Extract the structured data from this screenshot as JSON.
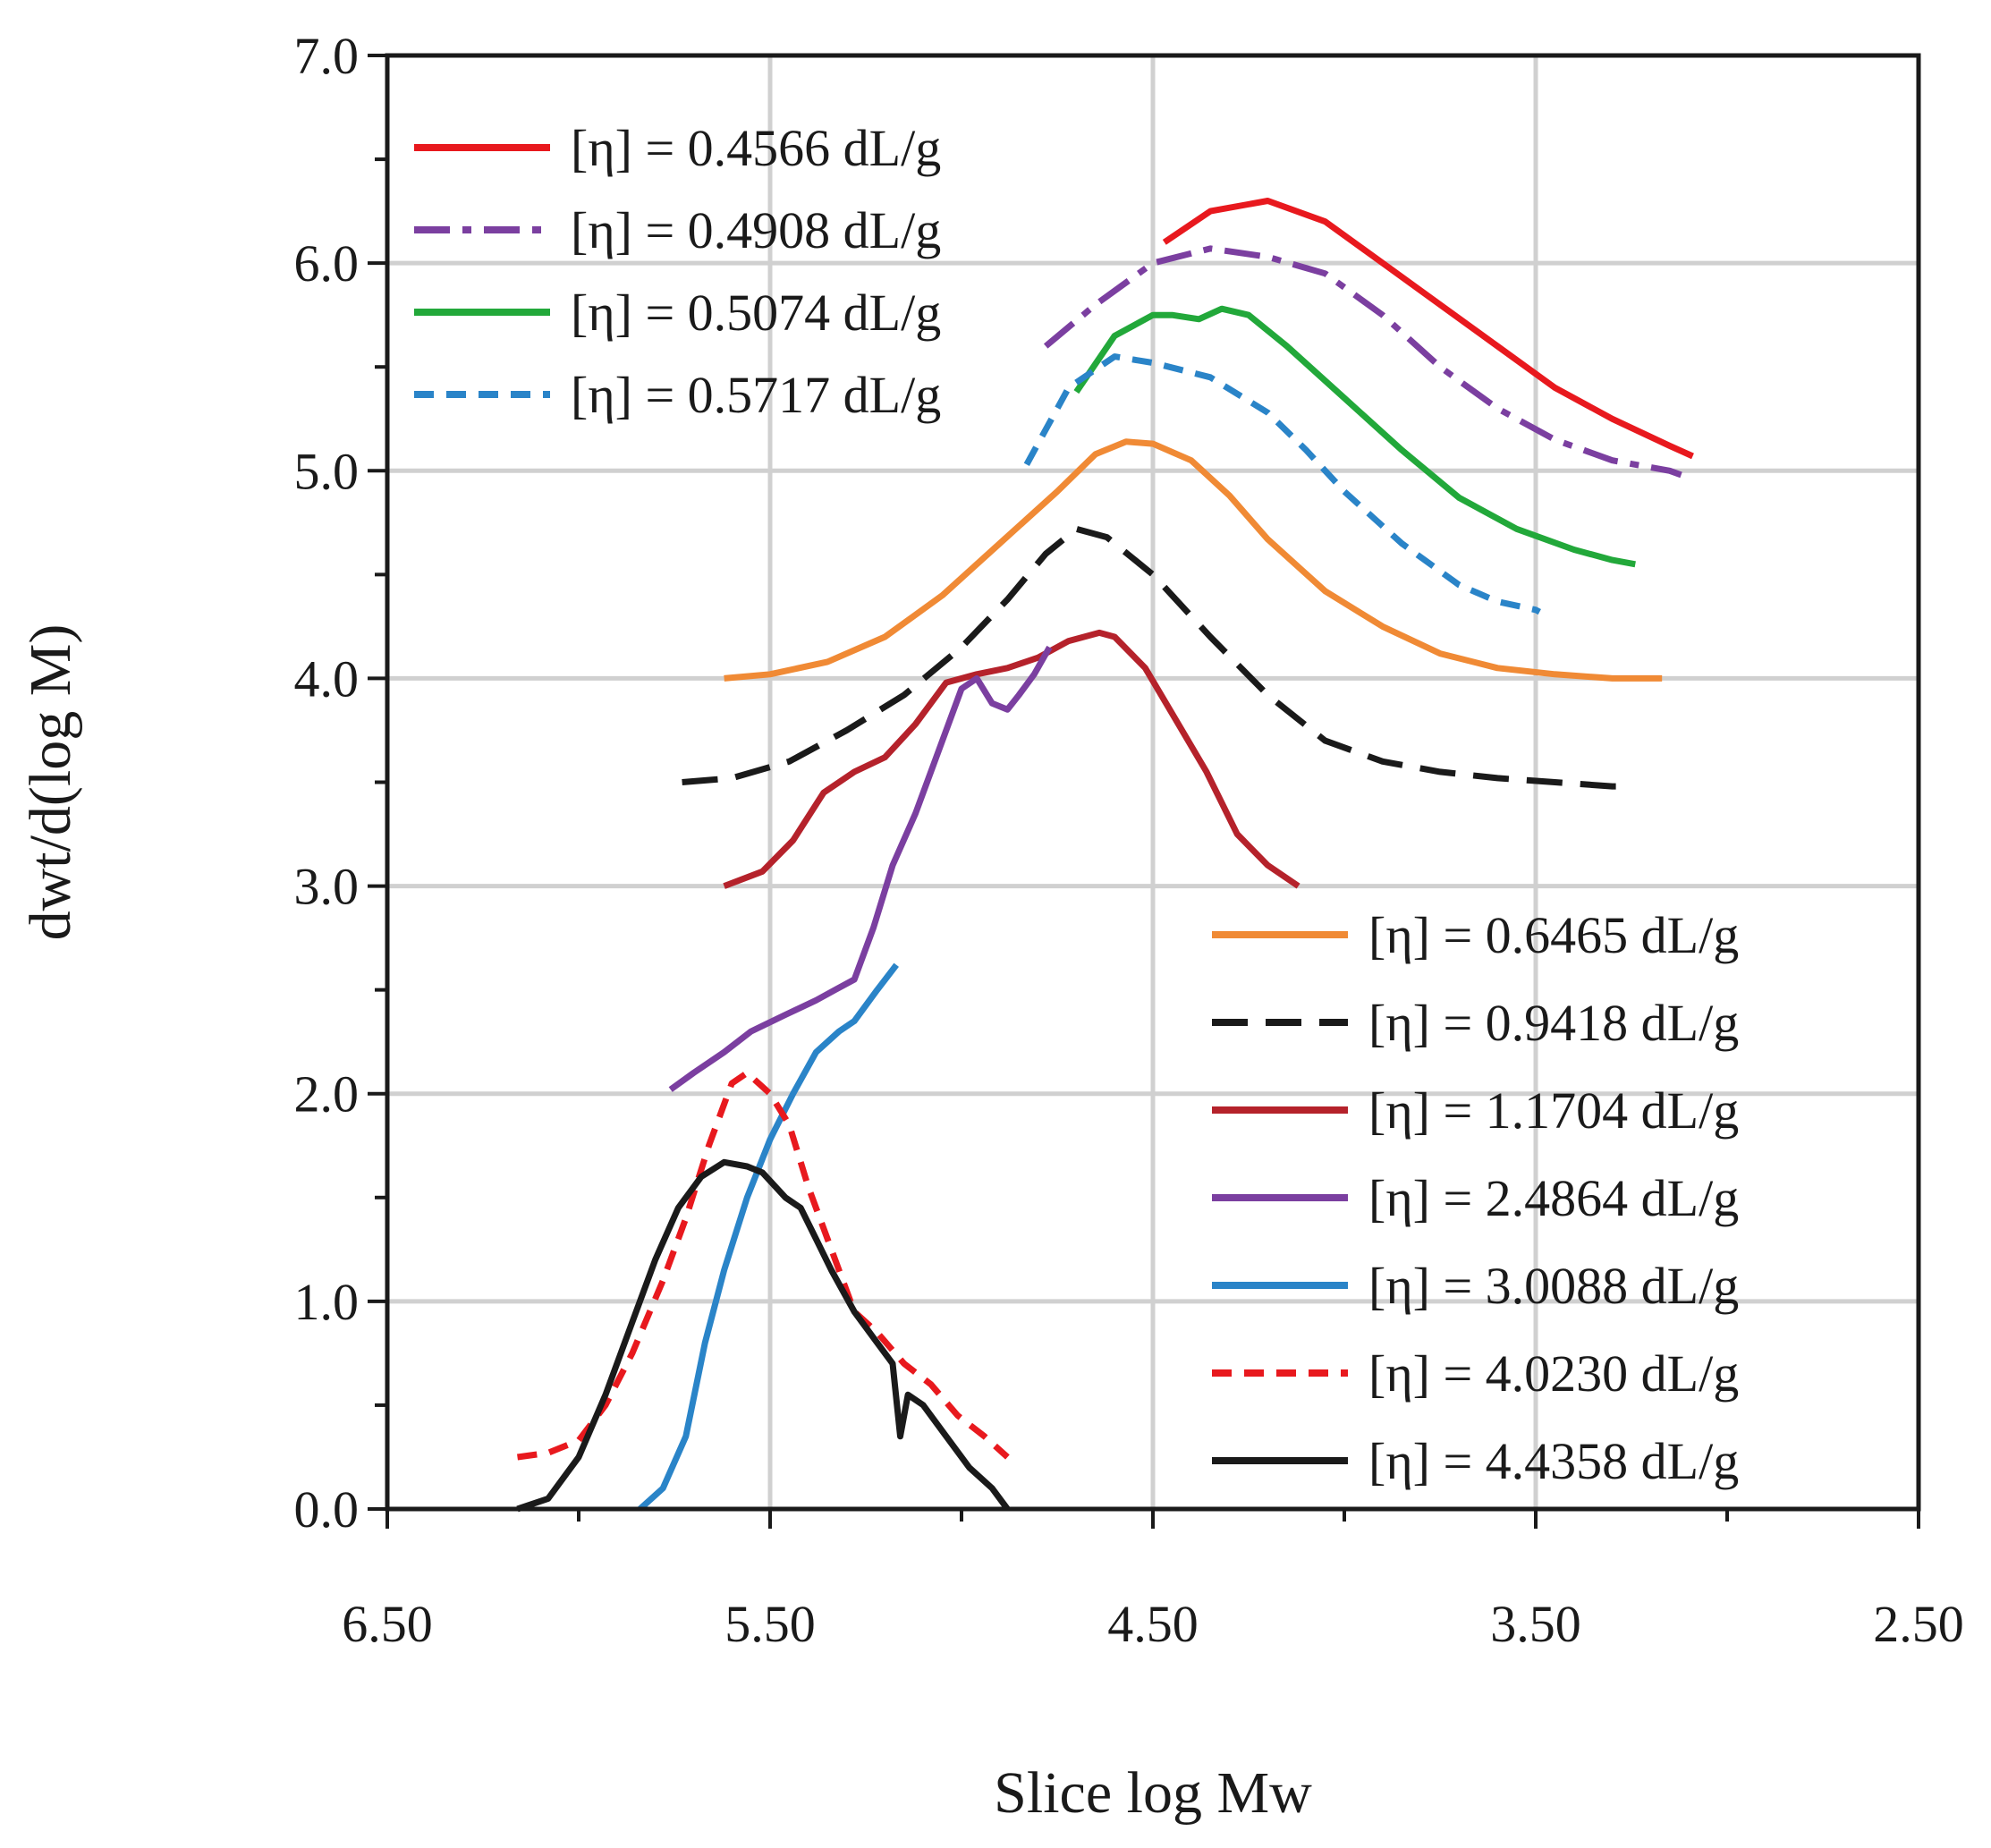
{
  "chart_data": {
    "type": "line",
    "xlabel": "Slice log Mw",
    "ylabel": "dwt/d(log M)",
    "xlim": [
      6.5,
      2.5
    ],
    "ylim": [
      0,
      7
    ],
    "x_reversed": true,
    "grid": true,
    "x_ticks": [
      "6.50",
      "5.50",
      "4.50",
      "3.50",
      "2.50"
    ],
    "y_ticks": [
      "0.0",
      "1.0",
      "2.0",
      "3.0",
      "4.0",
      "5.0",
      "6.0",
      "7.0"
    ],
    "legends": [
      {
        "position": "top-left",
        "series": [
          0,
          1,
          2,
          3
        ]
      },
      {
        "position": "bottom-right",
        "series": [
          4,
          5,
          6,
          7,
          8,
          9,
          10
        ]
      }
    ],
    "series": [
      {
        "name": "[η] = 0.4566 dL/g",
        "color": "#e8191e",
        "style": "solid",
        "x": [
          4.47,
          4.35,
          4.2,
          4.05,
          3.9,
          3.75,
          3.6,
          3.45,
          3.3,
          3.15,
          3.09
        ],
        "y": [
          6.1,
          6.25,
          6.3,
          6.2,
          6.0,
          5.8,
          5.6,
          5.4,
          5.25,
          5.12,
          5.07
        ]
      },
      {
        "name": "[η] = 0.4908 dL/g",
        "color": "#7b3fa0",
        "style": "dashdot",
        "x": [
          4.78,
          4.65,
          4.5,
          4.35,
          4.2,
          4.05,
          3.9,
          3.75,
          3.6,
          3.45,
          3.3,
          3.15,
          3.12
        ],
        "y": [
          5.6,
          5.8,
          6.0,
          6.07,
          6.03,
          5.95,
          5.75,
          5.5,
          5.3,
          5.15,
          5.05,
          5.0,
          4.98
        ]
      },
      {
        "name": "[η] = 0.5074 dL/g",
        "color": "#22a83a",
        "style": "solid",
        "x": [
          4.7,
          4.6,
          4.5,
          4.45,
          4.38,
          4.32,
          4.25,
          4.15,
          4.0,
          3.85,
          3.7,
          3.55,
          3.4,
          3.3,
          3.24
        ],
        "y": [
          5.38,
          5.65,
          5.75,
          5.75,
          5.73,
          5.78,
          5.75,
          5.6,
          5.35,
          5.1,
          4.87,
          4.72,
          4.62,
          4.57,
          4.55
        ]
      },
      {
        "name": "[η] = 0.5717 dL/g",
        "color": "#2a84c8",
        "style": "dashed",
        "x": [
          4.83,
          4.72,
          4.6,
          4.5,
          4.35,
          4.2,
          4.1,
          4.0,
          3.85,
          3.7,
          3.6,
          3.5,
          3.49
        ],
        "y": [
          5.03,
          5.4,
          5.55,
          5.52,
          5.45,
          5.28,
          5.1,
          4.9,
          4.65,
          4.45,
          4.37,
          4.33,
          4.32
        ]
      },
      {
        "name": "[η] = 0.6465 dL/g",
        "color": "#f08a35",
        "style": "solid",
        "x": [
          5.62,
          5.5,
          5.35,
          5.2,
          5.05,
          4.9,
          4.75,
          4.65,
          4.57,
          4.5,
          4.4,
          4.3,
          4.2,
          4.05,
          3.9,
          3.75,
          3.6,
          3.45,
          3.3,
          3.17
        ],
        "y": [
          4.0,
          4.02,
          4.08,
          4.2,
          4.4,
          4.65,
          4.9,
          5.08,
          5.14,
          5.13,
          5.05,
          4.88,
          4.67,
          4.42,
          4.25,
          4.12,
          4.05,
          4.02,
          4.0,
          4.0
        ]
      },
      {
        "name": "[η] = 0.9418 dL/g",
        "color": "#1a1a1a",
        "style": "longdash",
        "x": [
          5.73,
          5.6,
          5.45,
          5.3,
          5.15,
          5.0,
          4.88,
          4.78,
          4.7,
          4.62,
          4.5,
          4.35,
          4.2,
          4.05,
          3.9,
          3.75,
          3.6,
          3.45,
          3.3,
          3.27
        ],
        "y": [
          3.5,
          3.52,
          3.6,
          3.75,
          3.92,
          4.15,
          4.38,
          4.6,
          4.72,
          4.68,
          4.5,
          4.2,
          3.92,
          3.7,
          3.6,
          3.55,
          3.52,
          3.5,
          3.48,
          3.48
        ]
      },
      {
        "name": "[η] = 1.1704 dL/g",
        "color": "#b5222b",
        "style": "solid",
        "x": [
          5.62,
          5.52,
          5.44,
          5.36,
          5.28,
          5.2,
          5.12,
          5.04,
          4.96,
          4.88,
          4.8,
          4.72,
          4.64,
          4.6,
          4.52,
          4.44,
          4.36,
          4.28,
          4.2,
          4.12
        ],
        "y": [
          3.0,
          3.07,
          3.22,
          3.45,
          3.55,
          3.62,
          3.78,
          3.98,
          4.02,
          4.05,
          4.1,
          4.18,
          4.22,
          4.2,
          4.05,
          3.8,
          3.55,
          3.25,
          3.1,
          3.0
        ]
      },
      {
        "name": "[η] = 2.4864 dL/g",
        "color": "#7b3fa0",
        "style": "solid",
        "x": [
          5.76,
          5.7,
          5.62,
          5.55,
          5.46,
          5.38,
          5.33,
          5.28,
          5.23,
          5.18,
          5.12,
          5.06,
          5.0,
          4.96,
          4.92,
          4.88,
          4.85,
          4.81,
          4.77
        ],
        "y": [
          2.02,
          2.1,
          2.2,
          2.3,
          2.38,
          2.45,
          2.5,
          2.55,
          2.8,
          3.1,
          3.35,
          3.65,
          3.95,
          4.0,
          3.88,
          3.85,
          3.92,
          4.02,
          4.15
        ]
      },
      {
        "name": "[η] = 3.0088 dL/g",
        "color": "#2a84c8",
        "style": "solid",
        "x": [
          5.84,
          5.78,
          5.72,
          5.67,
          5.62,
          5.56,
          5.5,
          5.44,
          5.38,
          5.32,
          5.28,
          5.22,
          5.17
        ],
        "y": [
          0.0,
          0.1,
          0.35,
          0.8,
          1.15,
          1.5,
          1.78,
          2.0,
          2.2,
          2.3,
          2.35,
          2.5,
          2.62
        ]
      },
      {
        "name": "[η] = 4.0230 dL/g",
        "color": "#e8191e",
        "style": "dashed",
        "x": [
          6.16,
          6.08,
          6.0,
          5.93,
          5.86,
          5.78,
          5.72,
          5.66,
          5.6,
          5.56,
          5.5,
          5.45,
          5.4,
          5.34,
          5.28,
          5.22,
          5.15,
          5.08,
          5.01,
          4.94,
          4.88
        ],
        "y": [
          0.25,
          0.27,
          0.33,
          0.5,
          0.75,
          1.1,
          1.4,
          1.75,
          2.05,
          2.1,
          2.0,
          1.85,
          1.55,
          1.25,
          0.95,
          0.85,
          0.7,
          0.6,
          0.45,
          0.35,
          0.25
        ]
      },
      {
        "name": "[η] = 4.4358 dL/g",
        "color": "#1a1a1a",
        "style": "solid",
        "x": [
          6.16,
          6.08,
          6.0,
          5.93,
          5.86,
          5.8,
          5.74,
          5.68,
          5.62,
          5.56,
          5.52,
          5.46,
          5.42,
          5.38,
          5.34,
          5.28,
          5.22,
          5.18,
          5.16,
          5.14,
          5.1,
          5.04,
          4.98,
          4.92,
          4.88
        ],
        "y": [
          0.0,
          0.05,
          0.25,
          0.55,
          0.9,
          1.2,
          1.45,
          1.6,
          1.67,
          1.65,
          1.62,
          1.5,
          1.45,
          1.3,
          1.15,
          0.95,
          0.8,
          0.7,
          0.35,
          0.55,
          0.5,
          0.35,
          0.2,
          0.1,
          0.0
        ]
      }
    ]
  }
}
